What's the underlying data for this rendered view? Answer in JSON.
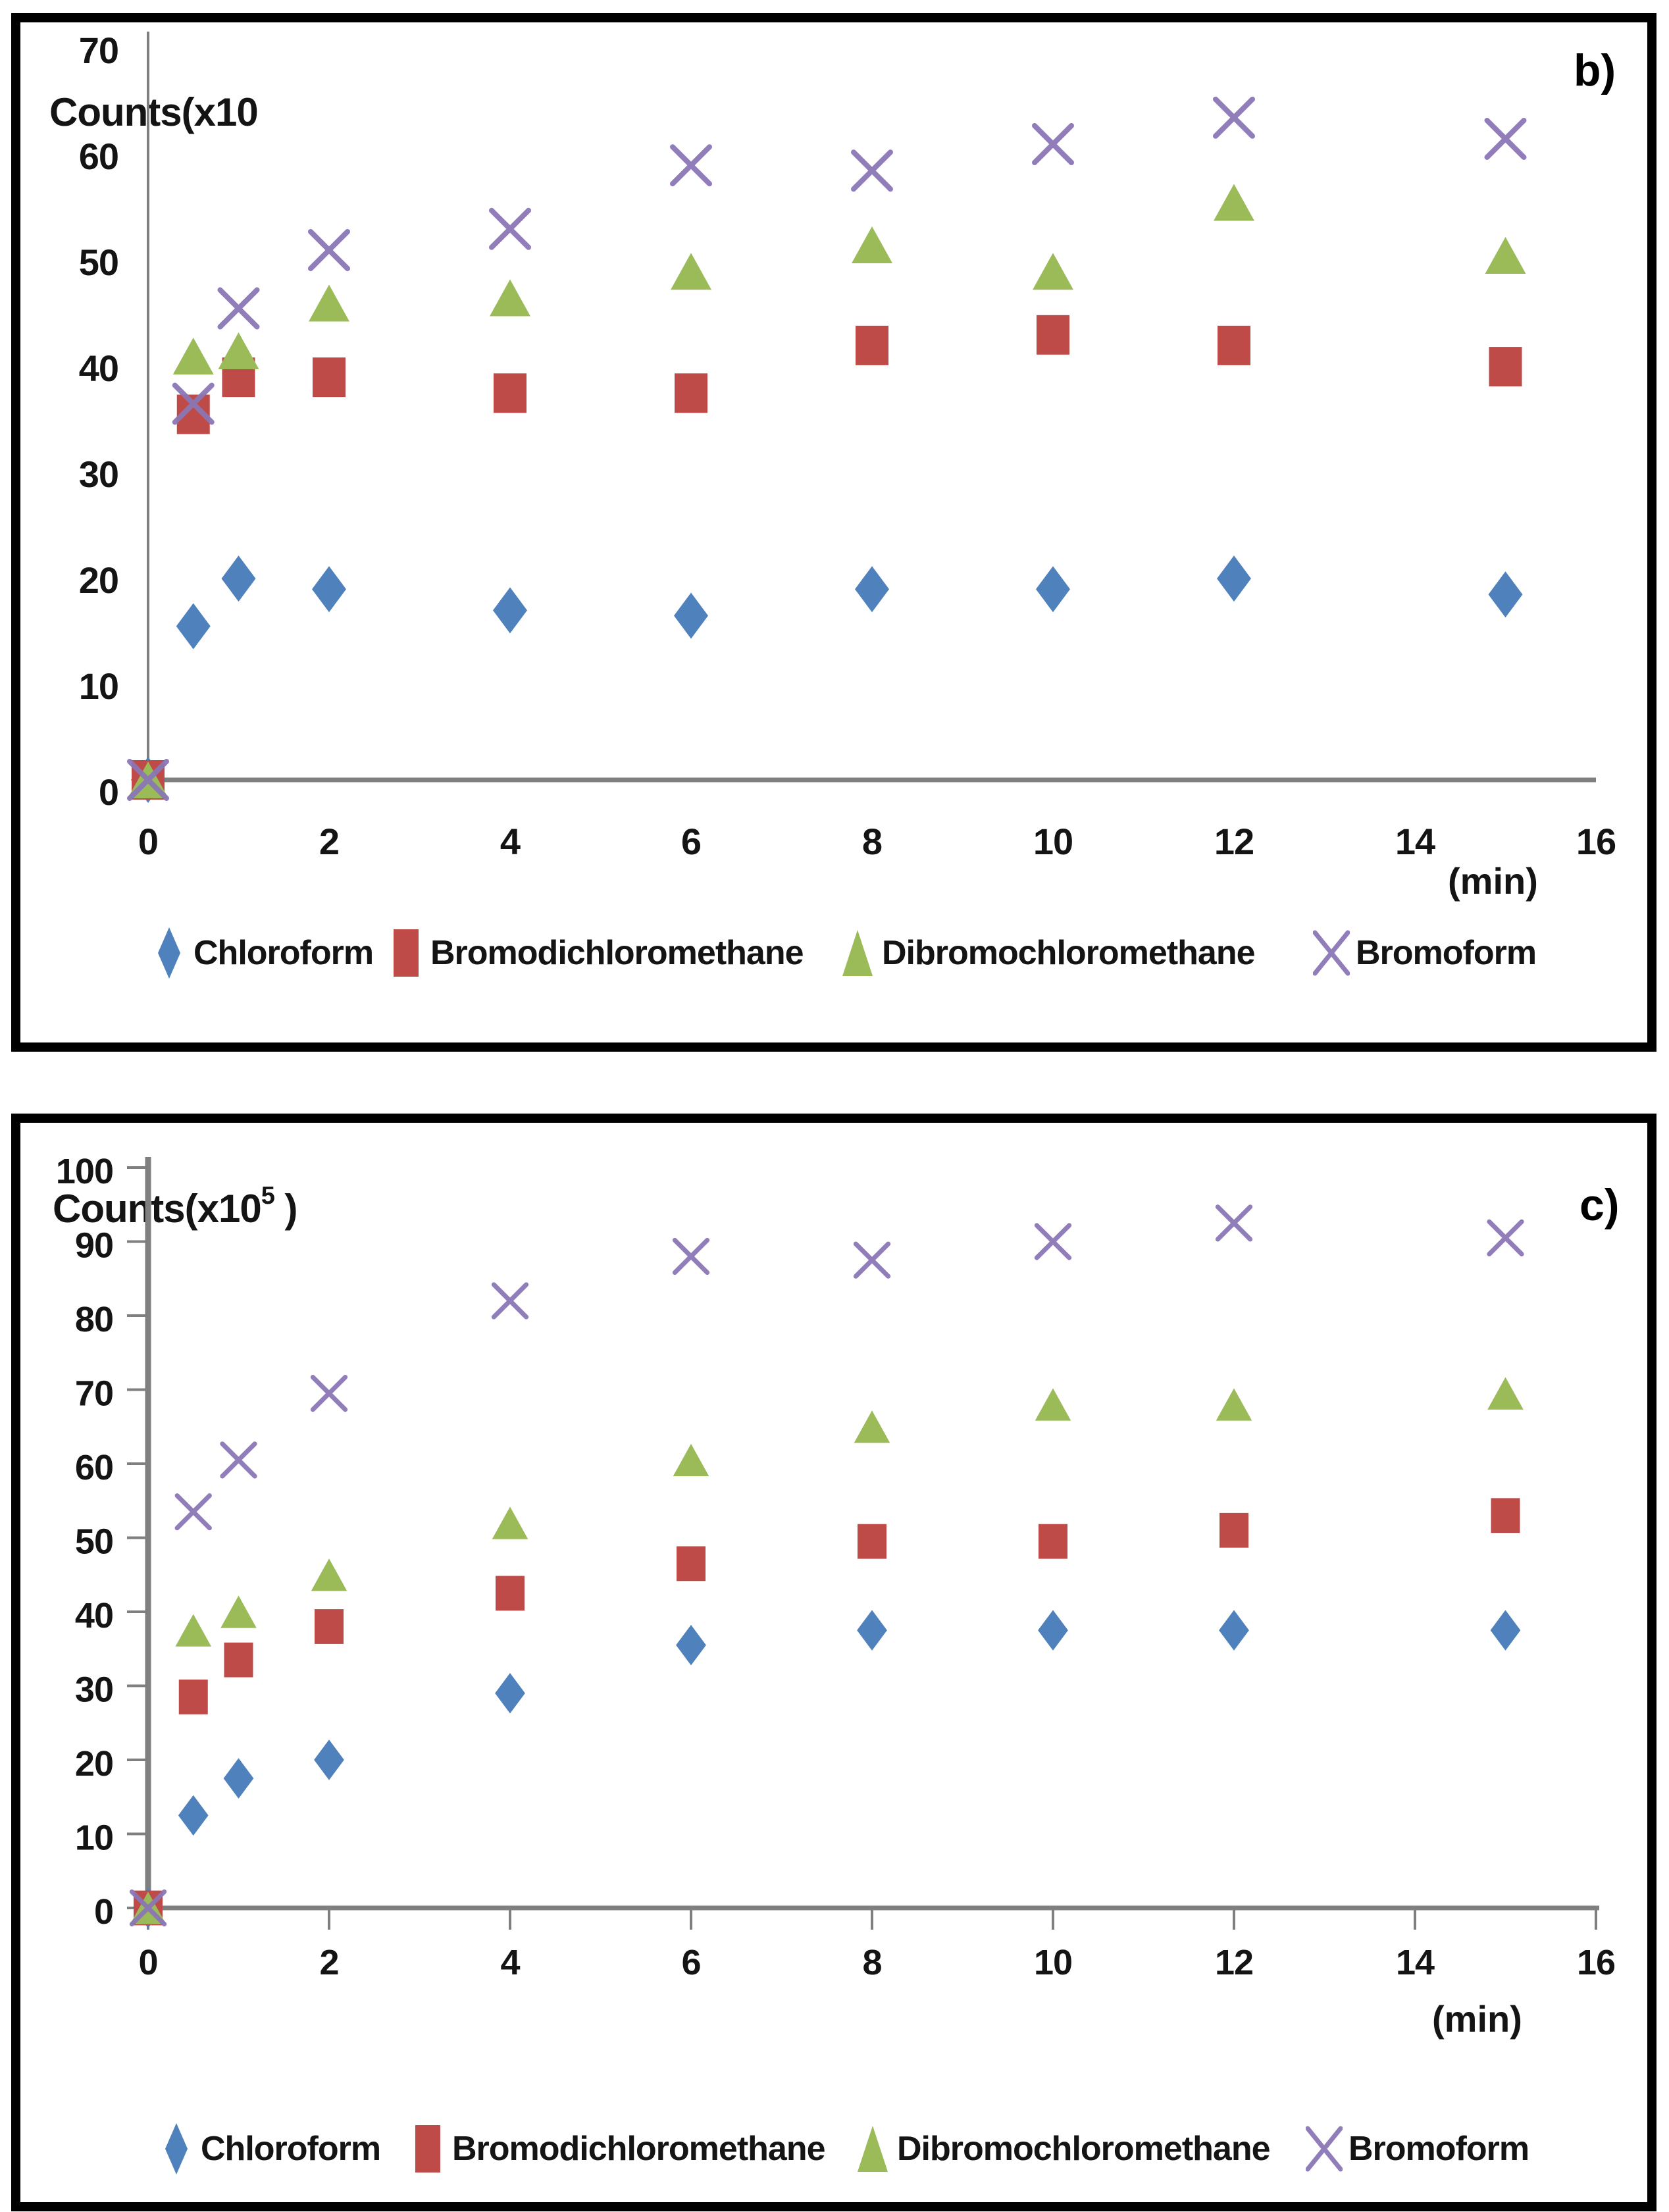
{
  "figure": {
    "description_note": "Two stacked scatter chart panels labeled b) and c) comparing trihalomethane counts versus extraction time in minutes",
    "panels": [
      "b)",
      "c)"
    ]
  },
  "chart_data": [
    {
      "type": "scatter",
      "panel": "b)",
      "ylabel_prefix": "Counts(x10",
      "ylabel_sup": "",
      "ylabel_suffix": "",
      "xlabel": "(min)",
      "xlim": [
        0,
        16
      ],
      "ylim": [
        0,
        70
      ],
      "xticks": [
        0,
        2,
        4,
        6,
        8,
        10,
        12,
        14,
        16
      ],
      "yticks": [
        0,
        10,
        20,
        30,
        40,
        50,
        60,
        70
      ],
      "grid": false,
      "legend_position": "bottom",
      "x": [
        0,
        0.5,
        1,
        2,
        4,
        6,
        8,
        10,
        12,
        15
      ],
      "series": [
        {
          "name": "Chloroform",
          "marker": "diamond",
          "color": "#4f81bd",
          "values": [
            0,
            14.5,
            19,
            18,
            16,
            15.5,
            18,
            18,
            19,
            17.5
          ]
        },
        {
          "name": "Bromodichloromethane",
          "marker": "square",
          "color": "#be4b48",
          "values": [
            0,
            34.5,
            38,
            38,
            36.5,
            36.5,
            41,
            42,
            41,
            39
          ]
        },
        {
          "name": "Dibromochloromethane",
          "marker": "triangle",
          "color": "#9bbb59",
          "values": [
            0,
            40,
            40.5,
            45,
            45.5,
            48,
            50.5,
            48,
            54.5,
            49.5
          ]
        },
        {
          "name": "Bromoform",
          "marker": "x",
          "color": "#8a76b5",
          "values": [
            0,
            35.5,
            44.5,
            50,
            52,
            58,
            57.5,
            60,
            62.5,
            60.5
          ]
        }
      ]
    },
    {
      "type": "scatter",
      "panel": "c)",
      "ylabel_prefix": "Counts(x10",
      "ylabel_sup": "5",
      "ylabel_suffix": " )",
      "xlabel": "(min)",
      "xlim": [
        0,
        16
      ],
      "ylim": [
        0,
        100
      ],
      "xticks": [
        0,
        2,
        4,
        6,
        8,
        10,
        12,
        14,
        16
      ],
      "yticks": [
        0,
        10,
        20,
        30,
        40,
        50,
        60,
        70,
        80,
        90,
        100
      ],
      "grid": false,
      "legend_position": "bottom",
      "x": [
        0,
        0.5,
        1,
        2,
        4,
        6,
        8,
        10,
        12,
        15
      ],
      "series": [
        {
          "name": "Chloroform",
          "marker": "diamond",
          "color": "#4f81bd",
          "values": [
            0,
            12.5,
            17.5,
            20,
            29,
            35.5,
            37.5,
            37.5,
            37.5,
            37.5
          ]
        },
        {
          "name": "Bromodichloromethane",
          "marker": "square",
          "color": "#be4b48",
          "values": [
            0,
            28.5,
            33.5,
            38,
            42.5,
            46.5,
            49.5,
            49.5,
            51,
            53
          ]
        },
        {
          "name": "Dibromochloromethane",
          "marker": "triangle",
          "color": "#9bbb59",
          "values": [
            0,
            37.5,
            40,
            45,
            52,
            60.5,
            65,
            68,
            68,
            69.5
          ]
        },
        {
          "name": "Bromoform",
          "marker": "x",
          "color": "#8a76b5",
          "values": [
            0,
            53.5,
            60.5,
            69.5,
            82,
            88,
            87.5,
            90,
            92.5,
            90.5
          ]
        }
      ]
    }
  ],
  "colors": {
    "axis": "#7f7f7f",
    "text": "#141414",
    "frame_border": "#000000"
  }
}
